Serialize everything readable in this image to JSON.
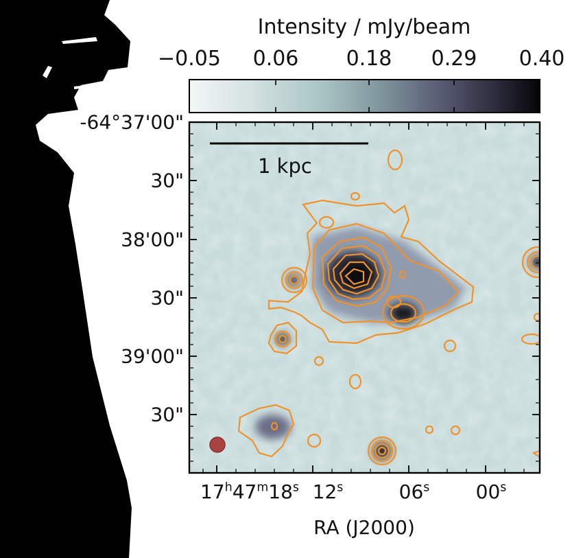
{
  "colorbar": {
    "title": "Intensity / mJy/beam",
    "ticks": [
      "−0.05",
      "0.06",
      "0.18",
      "0.29",
      "0.40"
    ],
    "colors": [
      "#f2f6f6",
      "#d3e1e1",
      "#a9c4c5",
      "#7f949c",
      "#585a72",
      "#2e2d3e",
      "#050507"
    ]
  },
  "axes": {
    "y_labels": [
      "-64°37'00\"",
      "30\"",
      "38'00\"",
      "30\"",
      "39'00\"",
      "30\""
    ],
    "x_labels": [
      {
        "main": "17",
        "sup_h": "h",
        "mid": "47",
        "sup_m": "m",
        "tail": "18",
        "sup_s": "s"
      },
      {
        "main": "12",
        "sup_s": "s"
      },
      {
        "main": "06",
        "sup_s": "s"
      },
      {
        "main": "00",
        "sup_s": "s"
      }
    ],
    "x_title": "RA (J2000)"
  },
  "scalebar": {
    "label": "1 kpc"
  },
  "colors": {
    "contour": "#f0922b",
    "beam": "#a83232",
    "field": "#c7dcdc",
    "mask": "#000000"
  }
}
